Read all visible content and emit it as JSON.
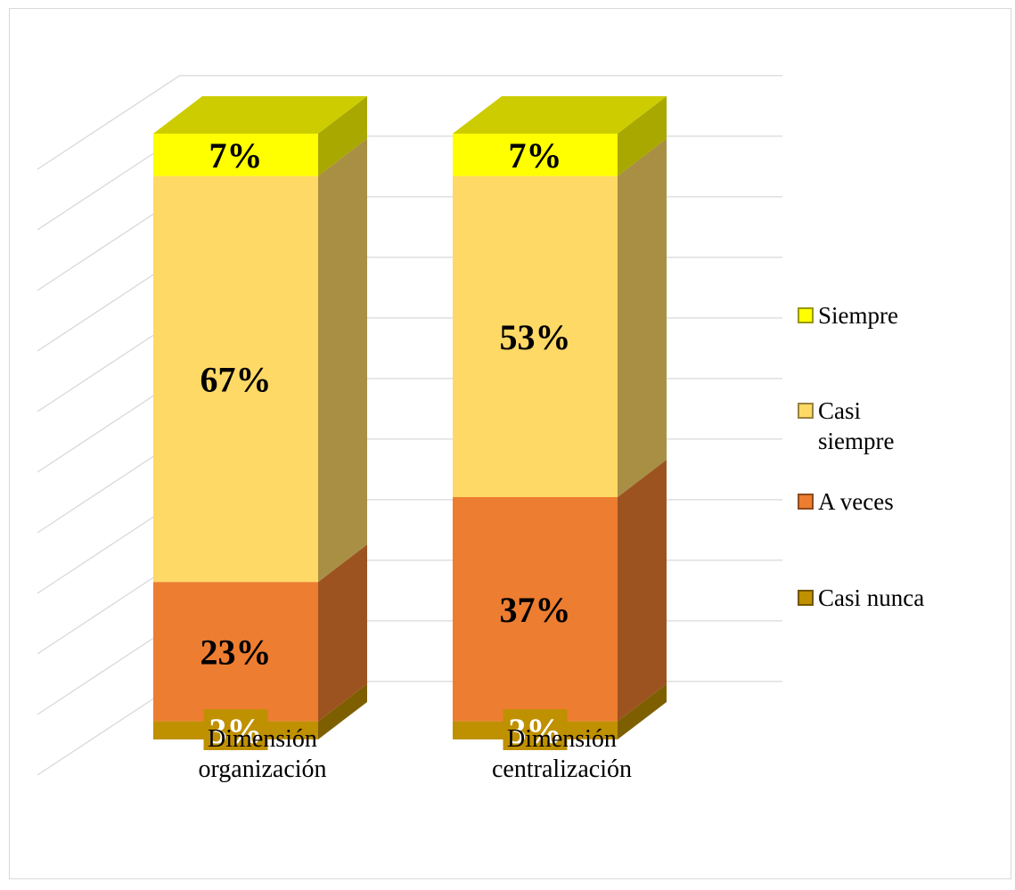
{
  "chart_data": {
    "type": "bar",
    "stacked": true,
    "three_d": true,
    "categories": [
      "Dimensión organización",
      "Dimensión centralización"
    ],
    "category_lines": [
      [
        "Dimensión",
        "organización"
      ],
      [
        "Dimensión",
        "centralización"
      ]
    ],
    "series": [
      {
        "name": "Casi nunca",
        "values": [
          3,
          3
        ],
        "labels": [
          "3%",
          "3%"
        ],
        "color": "#bf9000"
      },
      {
        "name": "A veces",
        "values": [
          23,
          37
        ],
        "labels": [
          "23%",
          "37%"
        ],
        "color": "#ed7d31"
      },
      {
        "name": "Casi siempre",
        "values": [
          67,
          53
        ],
        "labels": [
          "67%",
          "53%"
        ],
        "color": "#ffd966"
      },
      {
        "name": "Siempre",
        "values": [
          7,
          7
        ],
        "labels": [
          "7%",
          "7%"
        ],
        "color": "#ffff00"
      }
    ],
    "ylim": [
      0,
      100
    ],
    "grid": true,
    "legend_position": "right",
    "legend": [
      {
        "series": "Siempre",
        "lines": [
          "Siempre"
        ]
      },
      {
        "series": "Casi siempre",
        "lines": [
          "Casi",
          "siempre"
        ]
      },
      {
        "series": "A veces",
        "lines": [
          "A veces"
        ]
      },
      {
        "series": "Casi nunca",
        "lines": [
          "Casi nunca"
        ]
      }
    ]
  }
}
